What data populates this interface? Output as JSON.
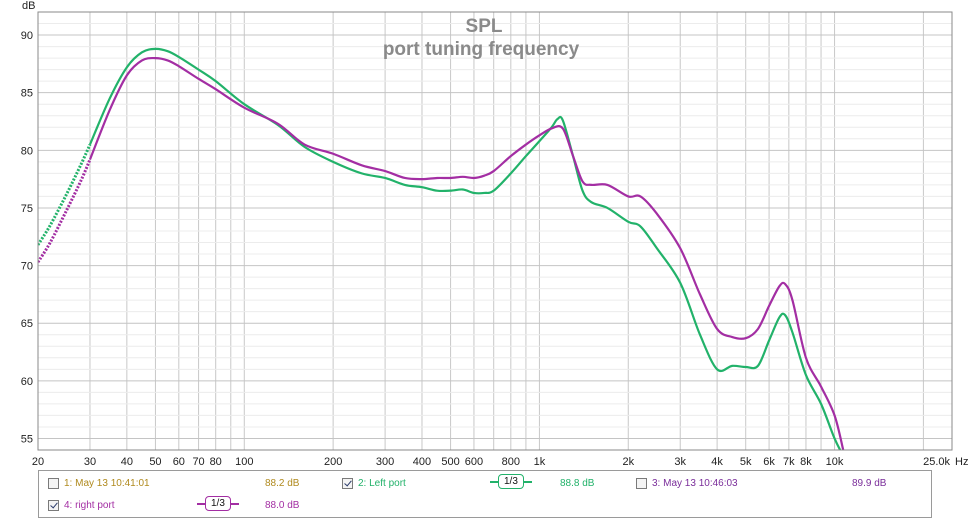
{
  "chart_data": {
    "type": "line",
    "title": "SPL",
    "subtitle": "port tuning frequency",
    "ylabel": "dB",
    "xunit": "Hz",
    "xscale": "log",
    "xlim": [
      20,
      25000
    ],
    "ylim": [
      54,
      92
    ],
    "grid": true,
    "yticks": [
      55,
      60,
      65,
      70,
      75,
      80,
      85,
      90
    ],
    "xticks": [
      {
        "v": 20,
        "label": "20"
      },
      {
        "v": 30,
        "label": "30"
      },
      {
        "v": 40,
        "label": "40"
      },
      {
        "v": 50,
        "label": "50"
      },
      {
        "v": 60,
        "label": "60"
      },
      {
        "v": 70,
        "label": "70"
      },
      {
        "v": 80,
        "label": "80"
      },
      {
        "v": 100,
        "label": "100"
      },
      {
        "v": 200,
        "label": "200"
      },
      {
        "v": 300,
        "label": "300"
      },
      {
        "v": 400,
        "label": "400"
      },
      {
        "v": 500,
        "label": "500"
      },
      {
        "v": 600,
        "label": "600"
      },
      {
        "v": 800,
        "label": "800"
      },
      {
        "v": 1000,
        "label": "1k"
      },
      {
        "v": 2000,
        "label": "2k"
      },
      {
        "v": 3000,
        "label": "3k"
      },
      {
        "v": 4000,
        "label": "4k"
      },
      {
        "v": 5000,
        "label": "5k"
      },
      {
        "v": 6000,
        "label": "6k"
      },
      {
        "v": 7000,
        "label": "7k"
      },
      {
        "v": 8000,
        "label": "8k"
      },
      {
        "v": 10000,
        "label": "10k"
      },
      {
        "v": 25000,
        "label": "25.0k"
      }
    ],
    "series": [
      {
        "name": "2: Left port",
        "color": "#22b26a",
        "dotted_below_hz": 30,
        "points": [
          [
            20,
            71.8
          ],
          [
            22,
            73.5
          ],
          [
            25,
            76.2
          ],
          [
            28,
            78.8
          ],
          [
            30,
            80.5
          ],
          [
            35,
            84.5
          ],
          [
            40,
            87.2
          ],
          [
            45,
            88.5
          ],
          [
            50,
            88.8
          ],
          [
            55,
            88.6
          ],
          [
            60,
            88.1
          ],
          [
            70,
            87.0
          ],
          [
            80,
            86.0
          ],
          [
            100,
            84.0
          ],
          [
            130,
            82.2
          ],
          [
            160,
            80.3
          ],
          [
            200,
            79.0
          ],
          [
            250,
            78.0
          ],
          [
            300,
            77.6
          ],
          [
            350,
            77.0
          ],
          [
            400,
            76.8
          ],
          [
            450,
            76.5
          ],
          [
            500,
            76.5
          ],
          [
            550,
            76.6
          ],
          [
            600,
            76.3
          ],
          [
            650,
            76.3
          ],
          [
            700,
            76.5
          ],
          [
            800,
            78.0
          ],
          [
            900,
            79.5
          ],
          [
            1000,
            80.8
          ],
          [
            1100,
            82.0
          ],
          [
            1150,
            82.7
          ],
          [
            1200,
            82.6
          ],
          [
            1300,
            79.5
          ],
          [
            1400,
            76.5
          ],
          [
            1500,
            75.5
          ],
          [
            1700,
            75.0
          ],
          [
            2000,
            73.8
          ],
          [
            2200,
            73.4
          ],
          [
            2500,
            71.5
          ],
          [
            3000,
            68.5
          ],
          [
            3500,
            64.0
          ],
          [
            4000,
            61.0
          ],
          [
            4500,
            61.3
          ],
          [
            5000,
            61.2
          ],
          [
            5500,
            61.3
          ],
          [
            6000,
            63.5
          ],
          [
            6500,
            65.5
          ],
          [
            6800,
            65.7
          ],
          [
            7200,
            64.2
          ],
          [
            8000,
            60.5
          ],
          [
            9000,
            58.0
          ],
          [
            10000,
            55.0
          ],
          [
            10700,
            53.5
          ]
        ]
      },
      {
        "name": "4: right port",
        "color": "#a32ea3",
        "dotted_below_hz": 30,
        "points": [
          [
            20,
            70.3
          ],
          [
            22,
            72.0
          ],
          [
            25,
            74.8
          ],
          [
            28,
            77.4
          ],
          [
            30,
            79.2
          ],
          [
            35,
            83.5
          ],
          [
            40,
            86.5
          ],
          [
            45,
            87.8
          ],
          [
            50,
            88.0
          ],
          [
            55,
            87.8
          ],
          [
            60,
            87.3
          ],
          [
            70,
            86.2
          ],
          [
            80,
            85.3
          ],
          [
            100,
            83.7
          ],
          [
            130,
            82.3
          ],
          [
            160,
            80.5
          ],
          [
            200,
            79.7
          ],
          [
            250,
            78.7
          ],
          [
            300,
            78.2
          ],
          [
            350,
            77.6
          ],
          [
            400,
            77.5
          ],
          [
            450,
            77.6
          ],
          [
            500,
            77.6
          ],
          [
            550,
            77.7
          ],
          [
            600,
            77.6
          ],
          [
            650,
            77.8
          ],
          [
            700,
            78.2
          ],
          [
            800,
            79.5
          ],
          [
            900,
            80.5
          ],
          [
            1000,
            81.3
          ],
          [
            1100,
            81.9
          ],
          [
            1200,
            81.9
          ],
          [
            1300,
            79.5
          ],
          [
            1400,
            77.3
          ],
          [
            1500,
            77.0
          ],
          [
            1700,
            77.0
          ],
          [
            2000,
            76.0
          ],
          [
            2200,
            76.0
          ],
          [
            2500,
            74.5
          ],
          [
            3000,
            71.5
          ],
          [
            3500,
            67.5
          ],
          [
            4000,
            64.5
          ],
          [
            4500,
            63.8
          ],
          [
            5000,
            63.7
          ],
          [
            5500,
            64.5
          ],
          [
            6000,
            66.5
          ],
          [
            6500,
            68.2
          ],
          [
            6800,
            68.4
          ],
          [
            7200,
            67.0
          ],
          [
            8000,
            62.0
          ],
          [
            9000,
            59.5
          ],
          [
            10000,
            57.0
          ],
          [
            10700,
            54.0
          ]
        ]
      }
    ]
  },
  "legend": {
    "items": [
      {
        "label": "1: May 13 10:41:01",
        "checked": false,
        "color": "#b08a1e",
        "value": "88.2 dB"
      },
      {
        "label": "2: Left port",
        "checked": true,
        "color": "#22b26a",
        "value": "88.8 dB",
        "smoothing": "1/3"
      },
      {
        "label": "3: May 13 10:46:03",
        "checked": false,
        "color": "#7a2d9a",
        "value": "89.9 dB"
      },
      {
        "label": "4: right port",
        "checked": true,
        "color": "#a32ea3",
        "value": "88.0 dB",
        "smoothing": "1/3"
      }
    ]
  }
}
